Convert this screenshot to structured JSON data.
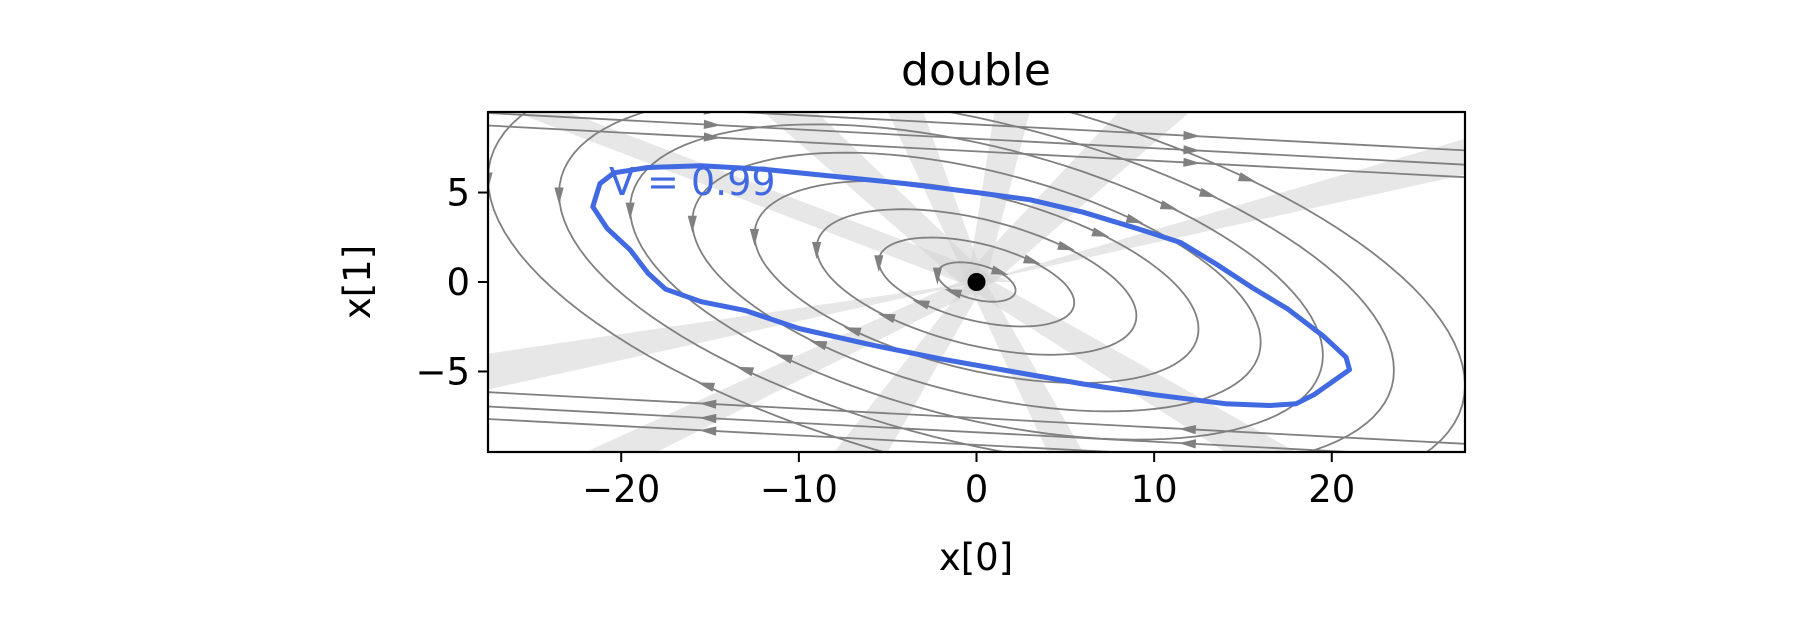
{
  "chart_data": {
    "type": "streamplot",
    "title": "double",
    "xlabel": "x[0]",
    "ylabel": "x[1]",
    "xlim": [
      -27.5,
      27.5
    ],
    "ylim": [
      -9.5,
      9.5
    ],
    "xticks": [
      -20,
      -10,
      0,
      10,
      20
    ],
    "xtick_labels": [
      "−20",
      "−10",
      "0",
      "10",
      "20"
    ],
    "yticks": [
      -5,
      0,
      5
    ],
    "ytick_labels": [
      "−5",
      "0",
      "5"
    ],
    "grid": false,
    "legend": "none",
    "equilibrium": {
      "x": 0,
      "y": 0,
      "color": "#000000"
    },
    "contour": {
      "label": "V = 0.99",
      "level": 0.99,
      "color": "#4169e1",
      "label_position": [
        -16,
        5.6
      ],
      "points": [
        [
          -21.2,
          5.5
        ],
        [
          -20.4,
          6.1
        ],
        [
          -18.5,
          6.4
        ],
        [
          -15.5,
          6.5
        ],
        [
          -12,
          6.3
        ],
        [
          -8,
          5.9
        ],
        [
          -4,
          5.5
        ],
        [
          0,
          5.0
        ],
        [
          3,
          4.6
        ],
        [
          6,
          3.9
        ],
        [
          9,
          3.0
        ],
        [
          11.5,
          2.2
        ],
        [
          13.5,
          1.0
        ],
        [
          15.5,
          -0.3
        ],
        [
          17.5,
          -1.5
        ],
        [
          19.5,
          -3.0
        ],
        [
          20.8,
          -4.2
        ],
        [
          21.0,
          -4.9
        ],
        [
          20.0,
          -5.6
        ],
        [
          19.0,
          -6.3
        ],
        [
          18.0,
          -6.8
        ],
        [
          16.5,
          -6.9
        ],
        [
          14,
          -6.8
        ],
        [
          10,
          -6.3
        ],
        [
          6,
          -5.7
        ],
        [
          2,
          -5.0
        ],
        [
          -2,
          -4.3
        ],
        [
          -6,
          -3.5
        ],
        [
          -10,
          -2.6
        ],
        [
          -13,
          -1.6
        ],
        [
          -15.5,
          -1.1
        ],
        [
          -17.5,
          -0.4
        ],
        [
          -18.5,
          0.5
        ],
        [
          -19.5,
          1.8
        ],
        [
          -20.8,
          3.0
        ],
        [
          -21.6,
          4.2
        ],
        [
          -21.2,
          5.5
        ]
      ]
    },
    "colors": {
      "streamlines": "#808080",
      "wedges": "#d3d3d3",
      "contour": "#4169e1"
    }
  }
}
